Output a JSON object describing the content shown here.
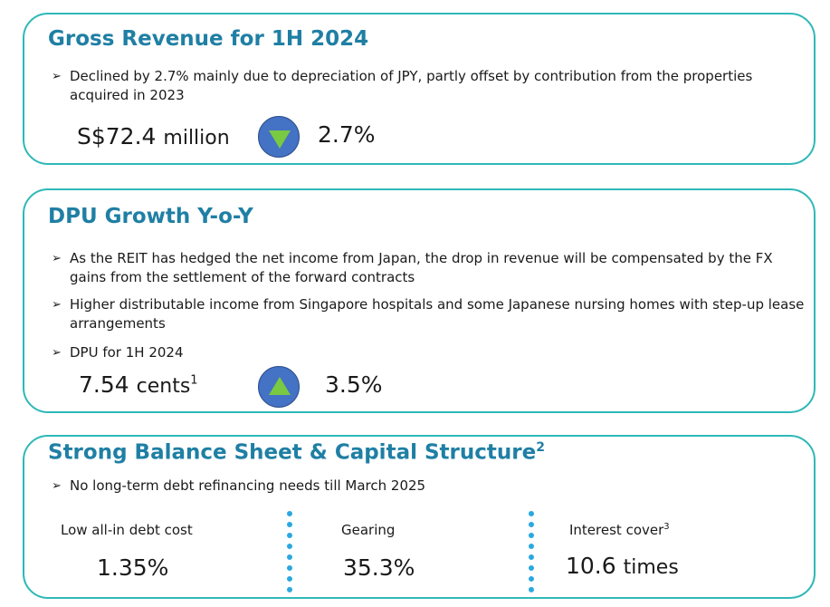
{
  "gross_revenue": {
    "title": "Gross Revenue for 1H 2024",
    "bullet": "Declined by 2.7% mainly due to depreciation of JPY, partly offset by contribution from the properties acquired in 2023",
    "value": "S$72.4",
    "unit": "million",
    "change": "2.7%",
    "direction_icon": "triangle-down-icon"
  },
  "dpu": {
    "title": "DPU Growth Y-o-Y",
    "bullets": [
      "As the REIT has hedged the net income from Japan, the drop in revenue will be compensated by the FX gains from the settlement of the forward contracts",
      "Higher distributable income from Singapore hospitals and some Japanese nursing homes with step-up lease arrangements",
      "DPU for 1H 2024"
    ],
    "value": "7.54",
    "unit": "cents",
    "unit_note": "1",
    "change": "3.5%",
    "direction_icon": "triangle-up-icon"
  },
  "balance_sheet": {
    "title": "Strong Balance Sheet & Capital Structure",
    "title_note": "2",
    "bullet": "No long-term debt refinancing needs till March 2025",
    "metrics": [
      {
        "label": "Low all-in debt cost",
        "note": "",
        "value": "1.35%",
        "unit": ""
      },
      {
        "label": "Gearing",
        "note": "",
        "value": "35.3%",
        "unit": ""
      },
      {
        "label": "Interest cover",
        "note": "3",
        "value": "10.6",
        "unit": "times"
      }
    ]
  },
  "colors": {
    "card_border": "#2fb8b8",
    "title": "#1f7fa4",
    "circle": "#4472c4",
    "triangle": "#7ac943",
    "divider": "#2aa8e0"
  }
}
